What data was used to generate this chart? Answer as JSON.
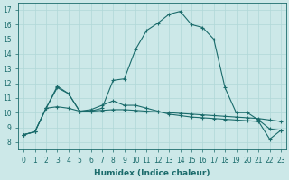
{
  "xlabel": "Humidex (Indice chaleur)",
  "background_color": "#cce8e8",
  "grid_color": "#b0d8d8",
  "line_color": "#1a6b6b",
  "xlim": [
    -0.5,
    23.5
  ],
  "ylim": [
    7.5,
    17.5
  ],
  "yticks": [
    8,
    9,
    10,
    11,
    12,
    13,
    14,
    15,
    16,
    17
  ],
  "xticks": [
    0,
    1,
    2,
    3,
    4,
    5,
    6,
    7,
    8,
    9,
    10,
    11,
    12,
    13,
    14,
    15,
    16,
    17,
    18,
    19,
    20,
    21,
    22,
    23
  ],
  "series": [
    [
      8.5,
      8.7,
      10.3,
      11.7,
      11.3,
      10.1,
      10.1,
      10.3,
      12.2,
      12.3,
      14.3,
      15.6,
      16.1,
      16.7,
      16.9,
      16.0,
      15.8,
      15.0,
      11.7,
      10.0,
      10.0,
      9.5,
      8.9,
      8.8
    ],
    [
      8.5,
      8.7,
      10.3,
      10.4,
      10.3,
      10.1,
      10.1,
      10.15,
      10.2,
      10.2,
      10.15,
      10.1,
      10.05,
      10.0,
      9.95,
      9.9,
      9.85,
      9.8,
      9.75,
      9.7,
      9.65,
      9.6,
      9.5,
      9.4
    ],
    [
      8.5,
      8.7,
      10.3,
      11.8,
      11.3,
      10.1,
      10.2,
      10.5,
      10.8,
      10.5,
      10.5,
      10.3,
      10.1,
      9.9,
      9.8,
      9.7,
      9.65,
      9.6,
      9.55,
      9.5,
      9.45,
      9.4,
      8.2,
      8.8
    ]
  ]
}
